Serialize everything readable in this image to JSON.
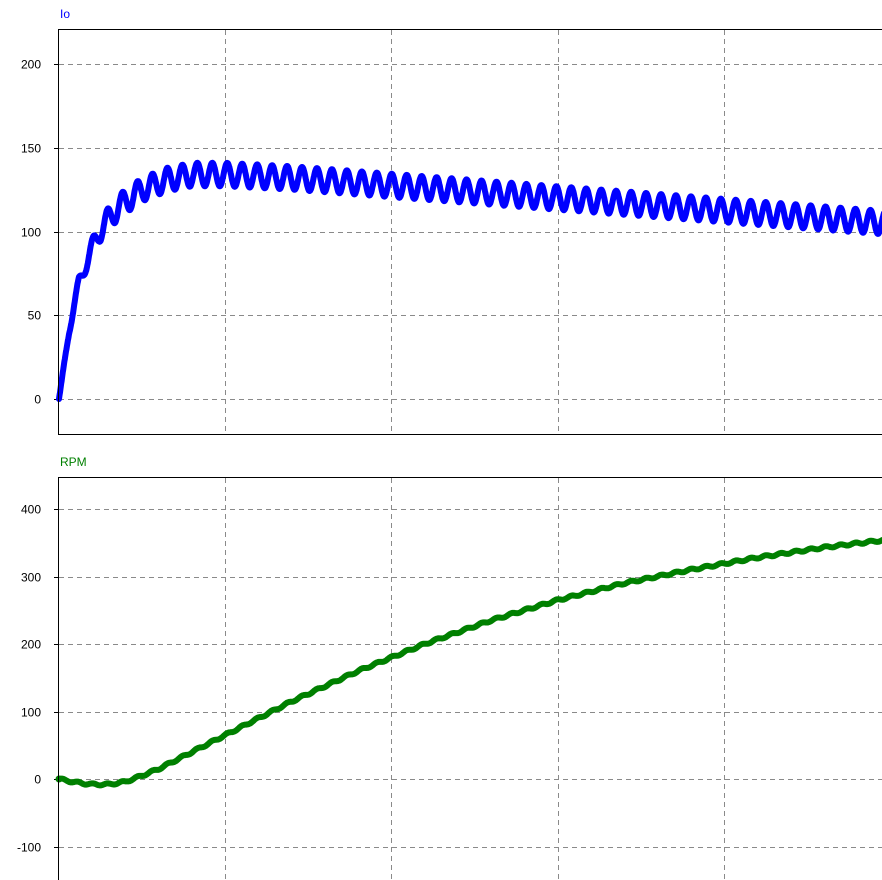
{
  "chart_data": [
    {
      "type": "line",
      "title": "Io",
      "title_color": "#0000ff",
      "series": [
        {
          "name": "Io",
          "color": "#0000ff",
          "envelope_center": {
            "x": [
              0,
              0.6,
              1.2,
              2.4,
              3.6,
              5,
              6.5,
              8,
              10,
              14,
              18,
              22,
              26,
              30,
              34,
              38,
              42,
              46,
              50
            ],
            "y": [
              0,
              40,
              70,
              100,
              115,
              125,
              131,
              134,
              134,
              132,
              129,
              126,
              123,
              120,
              117,
              114,
              111,
              108,
              105
            ]
          },
          "ripple_amplitude": 7,
          "ripple_period": 0.9
        }
      ],
      "ylim": [
        -20,
        220
      ],
      "yticks": [
        0,
        50,
        100,
        150,
        200
      ],
      "xlim": [
        0,
        50
      ],
      "xgrid": [
        10,
        20,
        30,
        40
      ],
      "grid": true
    },
    {
      "type": "line",
      "title": "RPM",
      "title_color": "#008000",
      "series": [
        {
          "name": "RPM",
          "color": "#008000",
          "x": [
            0,
            1,
            2,
            3,
            4,
            5,
            6,
            8,
            10,
            14,
            18,
            22,
            26,
            30,
            34,
            38,
            42,
            46,
            50
          ],
          "y": [
            0,
            -5,
            -8,
            -8,
            -4,
            5,
            15,
            40,
            65,
            115,
            160,
            200,
            235,
            265,
            290,
            310,
            328,
            343,
            355
          ]
        }
      ],
      "ylim": [
        -130,
        450
      ],
      "yticks": [
        -100,
        0,
        100,
        200,
        300,
        400
      ],
      "xlim": [
        0,
        50
      ],
      "xgrid": [
        10,
        20,
        30,
        40
      ],
      "grid": true
    }
  ]
}
